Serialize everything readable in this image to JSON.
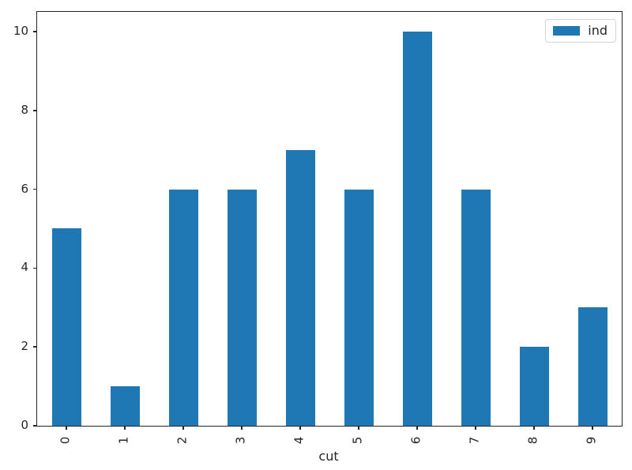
{
  "chart_data": {
    "type": "bar",
    "title": "",
    "xlabel": "cut",
    "ylabel": "",
    "categories": [
      "0",
      "1",
      "2",
      "3",
      "4",
      "5",
      "6",
      "7",
      "8",
      "9"
    ],
    "values": [
      5,
      1,
      6,
      6,
      7,
      6,
      10,
      6,
      2,
      3
    ],
    "series": [
      {
        "name": "ind",
        "values": [
          5,
          1,
          6,
          6,
          7,
          6,
          10,
          6,
          2,
          3
        ]
      }
    ],
    "yticks": [
      0,
      2,
      4,
      6,
      8,
      10
    ],
    "ylim": [
      0,
      10.5
    ],
    "x_tick_rotation": 90,
    "grid": false,
    "legend": {
      "position": "upper right",
      "entries": [
        {
          "label": "ind",
          "color": "#1f77b4"
        }
      ]
    },
    "colors": {
      "bar": "#1f77b4",
      "axis": "#262626",
      "text": "#262626",
      "legend_border": "#d4d4d4",
      "background": "#ffffff"
    }
  }
}
